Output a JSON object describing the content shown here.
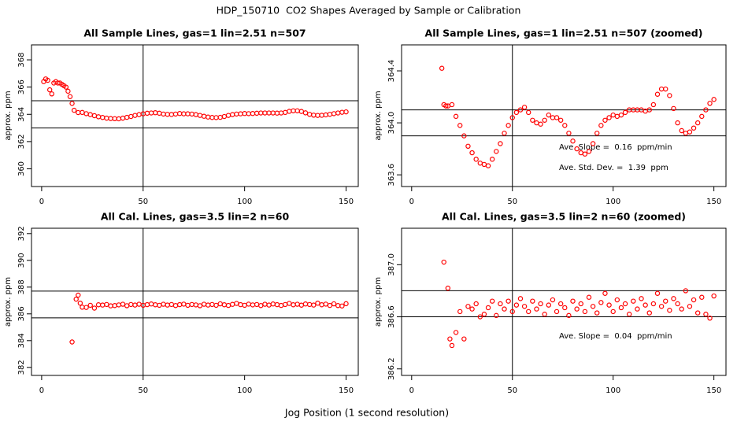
{
  "title": "HDP_150710  CO2 Shapes Averaged by Sample or Calibration",
  "xlabel": "Jog Position (1 second resolution)",
  "chart_data": [
    {
      "type": "scatter",
      "title": "All Sample Lines, gas=1 lin=2.51 n=507",
      "ylabel": "approx. ppm",
      "color": "#ff0000",
      "x": [
        1,
        2,
        3,
        4,
        5,
        6,
        7,
        8,
        9,
        10,
        11,
        12,
        13,
        14,
        15,
        16,
        18,
        20,
        22,
        24,
        26,
        28,
        30,
        32,
        34,
        36,
        38,
        40,
        42,
        44,
        46,
        48,
        50,
        52,
        54,
        56,
        58,
        60,
        62,
        64,
        66,
        68,
        70,
        72,
        74,
        76,
        78,
        80,
        82,
        84,
        86,
        88,
        90,
        92,
        94,
        96,
        98,
        100,
        102,
        104,
        106,
        108,
        110,
        112,
        114,
        116,
        118,
        120,
        122,
        124,
        126,
        128,
        130,
        132,
        134,
        136,
        138,
        140,
        142,
        144,
        146,
        148,
        150
      ],
      "values": [
        366.4,
        366.6,
        366.5,
        365.8,
        365.5,
        366.3,
        366.4,
        366.3,
        366.3,
        366.2,
        366.1,
        366.0,
        365.7,
        365.3,
        364.8,
        364.3,
        364.13,
        364.14,
        364.05,
        363.98,
        363.9,
        363.82,
        363.77,
        363.72,
        363.69,
        363.68,
        363.67,
        363.72,
        363.78,
        363.84,
        363.92,
        363.98,
        364.04,
        364.08,
        364.1,
        364.12,
        364.08,
        364.02,
        364.0,
        363.99,
        364.02,
        364.06,
        364.04,
        364.04,
        364.02,
        363.98,
        363.92,
        363.86,
        363.8,
        363.77,
        363.76,
        363.78,
        363.84,
        363.92,
        363.98,
        364.02,
        364.04,
        364.06,
        364.05,
        364.06,
        364.08,
        364.1,
        364.1,
        364.1,
        364.1,
        364.09,
        364.1,
        364.14,
        364.22,
        364.26,
        364.26,
        364.21,
        364.11,
        364.0,
        363.94,
        363.92,
        363.93,
        363.96,
        364.0,
        364.05,
        364.1,
        364.15,
        364.18
      ],
      "xlim": [
        -5,
        156
      ],
      "ylim": [
        358.7,
        369.1
      ],
      "xticks": [
        0,
        50,
        100,
        150
      ],
      "yticks": [
        360,
        362,
        364,
        366,
        368
      ],
      "hlines": [
        363,
        365
      ],
      "vlines": [
        50
      ],
      "annotations": []
    },
    {
      "type": "scatter",
      "title": "All Sample Lines, gas=1 lin=2.51 n=507 (zoomed)",
      "ylabel": "approx. ppm",
      "color": "#ff0000",
      "x": [
        15,
        16,
        17,
        18,
        20,
        22,
        24,
        26,
        28,
        30,
        32,
        34,
        36,
        38,
        40,
        42,
        44,
        46,
        48,
        50,
        52,
        54,
        56,
        58,
        60,
        62,
        64,
        66,
        68,
        70,
        72,
        74,
        76,
        78,
        80,
        82,
        84,
        86,
        88,
        90,
        92,
        94,
        96,
        98,
        100,
        102,
        104,
        106,
        108,
        110,
        112,
        114,
        116,
        118,
        120,
        122,
        124,
        126,
        128,
        130,
        132,
        134,
        136,
        138,
        140,
        142,
        144,
        146,
        148,
        150
      ],
      "values": [
        364.42,
        364.14,
        364.13,
        364.13,
        364.14,
        364.05,
        363.98,
        363.9,
        363.82,
        363.77,
        363.72,
        363.69,
        363.68,
        363.67,
        363.72,
        363.78,
        363.84,
        363.92,
        363.98,
        364.04,
        364.08,
        364.1,
        364.12,
        364.08,
        364.02,
        364.0,
        363.99,
        364.02,
        364.06,
        364.04,
        364.04,
        364.02,
        363.98,
        363.92,
        363.86,
        363.8,
        363.77,
        363.76,
        363.78,
        363.84,
        363.92,
        363.98,
        364.02,
        364.04,
        364.06,
        364.05,
        364.06,
        364.08,
        364.1,
        364.1,
        364.1,
        364.1,
        364.09,
        364.1,
        364.14,
        364.22,
        364.26,
        364.26,
        364.21,
        364.11,
        364.0,
        363.94,
        363.92,
        363.93,
        363.96,
        364.0,
        364.05,
        364.1,
        364.15,
        364.18
      ],
      "xlim": [
        -5,
        156
      ],
      "ylim": [
        363.51,
        364.6
      ],
      "xticks": [
        0,
        50,
        100,
        150
      ],
      "yticks": [
        363.6,
        {
          "value": 364,
          "label": "364.0"
        },
        364.4
      ],
      "hlines": [
        363.9,
        364.1
      ],
      "vlines": [
        50
      ],
      "annotations": [
        "Ave. Slope =  0.16  ppm/min",
        "Ave. Std. Dev. =  1.39  ppm"
      ]
    },
    {
      "type": "scatter",
      "title": "All Cal. Lines, gas=3.5 lin=2 n=60",
      "ylabel": "approx. ppm",
      "color": "#ff0000",
      "x": [
        15,
        17,
        18,
        19,
        20,
        22,
        24,
        26,
        28,
        30,
        32,
        34,
        36,
        38,
        40,
        42,
        44,
        46,
        48,
        50,
        52,
        54,
        56,
        58,
        60,
        62,
        64,
        66,
        68,
        70,
        72,
        74,
        76,
        78,
        80,
        82,
        84,
        86,
        88,
        90,
        92,
        94,
        96,
        98,
        100,
        102,
        104,
        106,
        108,
        110,
        112,
        114,
        116,
        118,
        120,
        122,
        124,
        126,
        128,
        130,
        132,
        134,
        136,
        138,
        140,
        142,
        144,
        146,
        148,
        150
      ],
      "values": [
        383.9,
        387.1,
        387.4,
        386.8,
        386.5,
        386.48,
        386.64,
        386.43,
        386.68,
        386.66,
        386.7,
        386.6,
        386.62,
        386.67,
        386.72,
        386.61,
        386.7,
        386.66,
        386.72,
        386.64,
        386.69,
        386.74,
        386.68,
        386.64,
        386.72,
        386.66,
        386.7,
        386.62,
        386.69,
        386.73,
        386.64,
        386.7,
        386.67,
        386.61,
        386.72,
        386.66,
        386.7,
        386.64,
        386.75,
        386.68,
        386.63,
        386.71,
        386.78,
        386.69,
        386.64,
        386.73,
        386.67,
        386.7,
        386.62,
        386.72,
        386.66,
        386.74,
        386.69,
        386.63,
        386.7,
        386.78,
        386.68,
        386.72,
        386.65,
        386.74,
        386.7,
        386.66,
        386.8,
        386.68,
        386.73,
        386.63,
        386.75,
        386.62,
        386.59,
        386.76
      ],
      "xlim": [
        -5,
        156
      ],
      "ylim": [
        381.4,
        392.4
      ],
      "xticks": [
        0,
        50,
        100,
        150
      ],
      "yticks": [
        382,
        384,
        386,
        388,
        390,
        392
      ],
      "hlines": [
        385.7,
        387.7
      ],
      "vlines": [
        50
      ],
      "annotations": []
    },
    {
      "type": "scatter",
      "title": "All Cal. Lines, gas=3.5 lin=2 n=60 (zoomed)",
      "ylabel": "approx. ppm",
      "color": "#ff0000",
      "x": [
        16,
        18,
        19,
        20,
        22,
        24,
        26,
        28,
        30,
        32,
        34,
        36,
        38,
        40,
        42,
        44,
        46,
        48,
        50,
        52,
        54,
        56,
        58,
        60,
        62,
        64,
        66,
        68,
        70,
        72,
        74,
        76,
        78,
        80,
        82,
        84,
        86,
        88,
        90,
        92,
        94,
        96,
        98,
        100,
        102,
        104,
        106,
        108,
        110,
        112,
        114,
        116,
        118,
        120,
        122,
        124,
        126,
        128,
        130,
        132,
        134,
        136,
        138,
        140,
        142,
        144,
        146,
        148,
        150
      ],
      "values": [
        387.02,
        386.82,
        386.43,
        386.38,
        386.48,
        386.64,
        386.43,
        386.68,
        386.66,
        386.7,
        386.6,
        386.62,
        386.67,
        386.72,
        386.61,
        386.7,
        386.66,
        386.72,
        386.64,
        386.69,
        386.74,
        386.68,
        386.64,
        386.72,
        386.66,
        386.7,
        386.62,
        386.69,
        386.73,
        386.64,
        386.7,
        386.67,
        386.61,
        386.72,
        386.66,
        386.7,
        386.64,
        386.75,
        386.68,
        386.63,
        386.71,
        386.78,
        386.69,
        386.64,
        386.73,
        386.67,
        386.7,
        386.62,
        386.72,
        386.66,
        386.74,
        386.69,
        386.63,
        386.7,
        386.78,
        386.68,
        386.72,
        386.65,
        386.74,
        386.7,
        386.66,
        386.8,
        386.68,
        386.73,
        386.63,
        386.75,
        386.62,
        386.59,
        386.76
      ],
      "xlim": [
        -5,
        156
      ],
      "ylim": [
        386.15,
        387.28
      ],
      "xticks": [
        0,
        50,
        100,
        150
      ],
      "yticks": [
        386.2,
        386.6,
        {
          "value": 387,
          "label": "387.0"
        }
      ],
      "hlines": [
        386.6,
        386.8
      ],
      "vlines": [
        50
      ],
      "annotations": [
        "Ave. Slope =  0.04  ppm/min"
      ]
    }
  ]
}
